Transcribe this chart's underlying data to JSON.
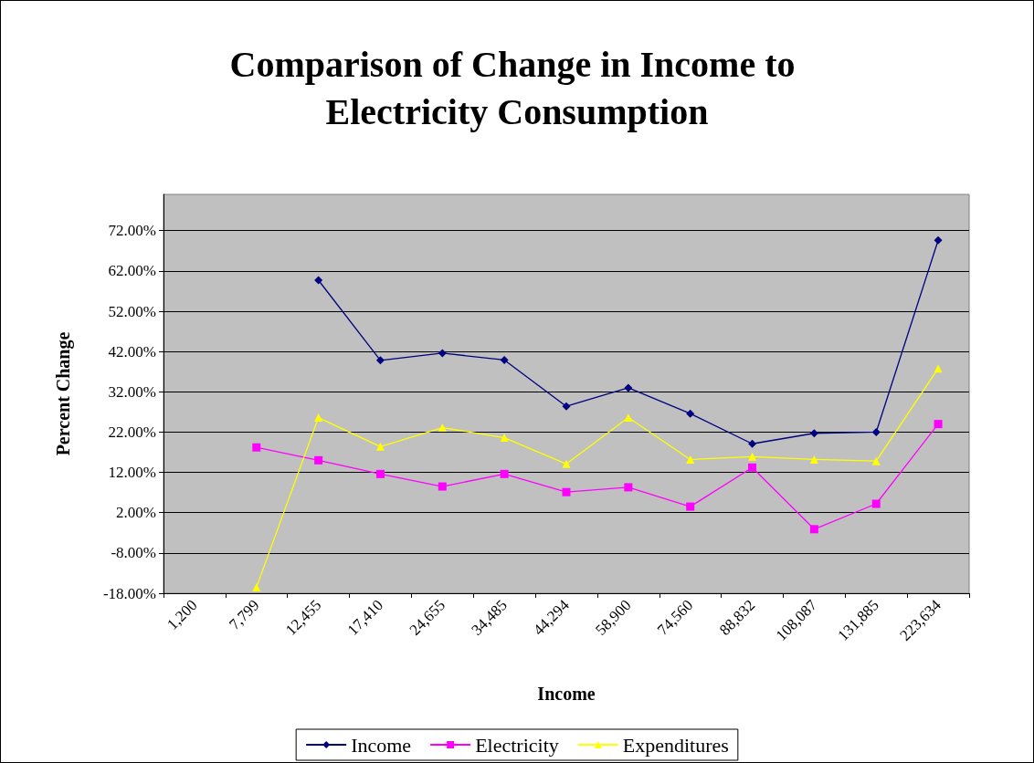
{
  "chart_data": {
    "type": "line",
    "title": "Comparison of Change in Income to Electricity Consumption",
    "xlabel": "Income",
    "ylabel": "Percent Change",
    "categories": [
      "1,200",
      "7,799",
      "12,455",
      "17,410",
      "24,655",
      "34,485",
      "44,294",
      "58,900",
      "74,560",
      "88,832",
      "108,087",
      "131,885",
      "223,634"
    ],
    "series": [
      {
        "name": "Income",
        "color": "#000080",
        "marker": "diamond",
        "values": [
          null,
          null,
          59.7,
          39.8,
          41.6,
          39.9,
          28.4,
          33.0,
          26.6,
          19.1,
          21.7,
          22.0,
          69.6
        ]
      },
      {
        "name": "Electricity",
        "color": "#ff00ff",
        "marker": "square",
        "values": [
          null,
          18.2,
          15.0,
          11.6,
          8.5,
          11.6,
          7.1,
          8.3,
          3.5,
          13.2,
          -2.1,
          4.2,
          24.0
        ]
      },
      {
        "name": "Expenditures",
        "color": "#ffff00",
        "marker": "triangle",
        "values": [
          null,
          -16.5,
          25.6,
          18.4,
          23.1,
          20.6,
          14.1,
          25.6,
          15.2,
          15.9,
          15.2,
          14.8,
          37.8
        ]
      }
    ],
    "ylim": [
      -18,
      81
    ],
    "yticks": [
      {
        "value": -18,
        "label": "-18.00%"
      },
      {
        "value": -8,
        "label": "-8.00%"
      },
      {
        "value": 2,
        "label": "2.00%"
      },
      {
        "value": 12,
        "label": "12.00%"
      },
      {
        "value": 22,
        "label": "22.00%"
      },
      {
        "value": 32,
        "label": "32.00%"
      },
      {
        "value": 42,
        "label": "42.00%"
      },
      {
        "value": 52,
        "label": "52.00%"
      },
      {
        "value": 62,
        "label": "62.00%"
      },
      {
        "value": 72,
        "label": "72.00%"
      }
    ],
    "grid": "y",
    "legend": "bottom",
    "line_style": "solid"
  }
}
